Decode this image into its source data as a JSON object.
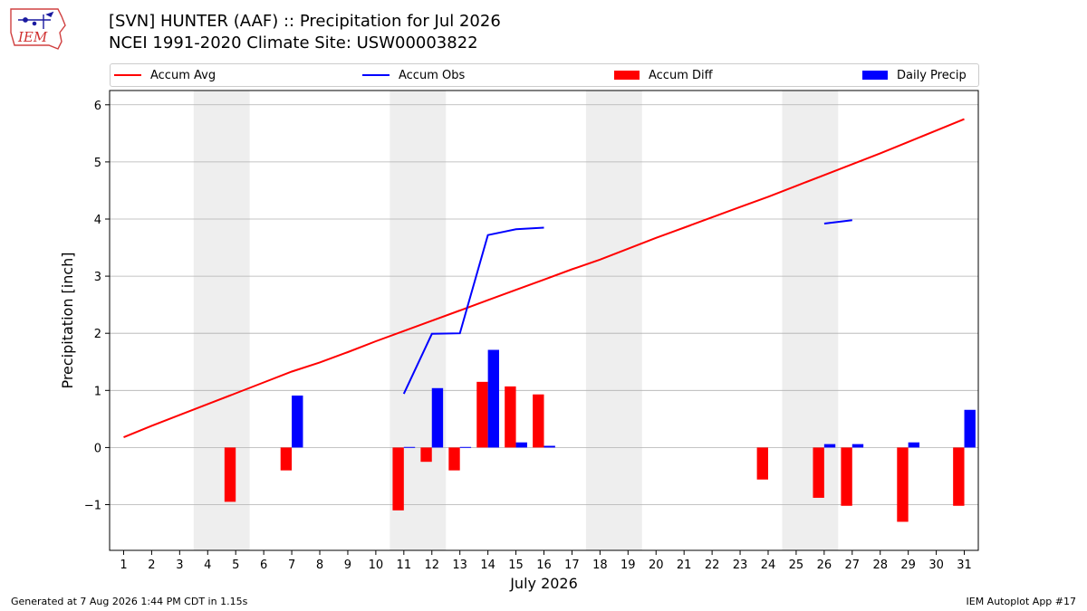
{
  "header": {
    "logo_text": "IEM",
    "title_line1": "[SVN] HUNTER (AAF) :: Precipitation for Jul 2026",
    "title_line2": "NCEI 1991-2020 Climate Site: USW00003822"
  },
  "legend": {
    "accum_avg": "Accum Avg",
    "accum_obs": "Accum Obs",
    "accum_diff": "Accum Diff",
    "daily_precip": "Daily Precip"
  },
  "colors": {
    "avg": "#ff0000",
    "obs": "#0000ff",
    "diff": "#ff0000",
    "daily": "#0000ff",
    "weekend": "#eeeeee",
    "grid": "#b0b0b0"
  },
  "footer": {
    "left": "Generated at 7 Aug 2026 1:44 PM CDT in 1.15s",
    "right": "IEM Autoplot App #17"
  },
  "chart_data": {
    "type": "bar",
    "xlabel": "July 2026",
    "ylabel": "Precipitation [inch]",
    "x": [
      1,
      2,
      3,
      4,
      5,
      6,
      7,
      8,
      9,
      10,
      11,
      12,
      13,
      14,
      15,
      16,
      17,
      18,
      19,
      20,
      21,
      22,
      23,
      24,
      25,
      26,
      27,
      28,
      29,
      30,
      31
    ],
    "xlim": [
      0.5,
      31.5
    ],
    "ylim": [
      -1.8,
      6.25
    ],
    "yticks": [
      -1,
      0,
      1,
      2,
      3,
      4,
      5,
      6
    ],
    "ytick_labels": [
      "−1",
      "0",
      "1",
      "2",
      "3",
      "4",
      "5",
      "6"
    ],
    "grid": "horizontal",
    "shaded_weekends": [
      [
        4,
        5
      ],
      [
        11,
        12
      ],
      [
        18,
        19
      ],
      [
        25,
        26
      ]
    ],
    "series": [
      {
        "name": "Accum Avg",
        "kind": "line",
        "values": [
          0.18,
          0.38,
          0.57,
          0.76,
          0.95,
          1.14,
          1.33,
          1.49,
          1.67,
          1.86,
          2.04,
          2.22,
          2.4,
          2.58,
          2.76,
          2.94,
          3.12,
          3.29,
          3.48,
          3.67,
          3.85,
          4.03,
          4.21,
          4.39,
          4.58,
          4.77,
          4.96,
          5.15,
          5.35,
          5.55,
          5.75
        ]
      },
      {
        "name": "Accum Obs",
        "kind": "line",
        "values": [
          null,
          null,
          null,
          null,
          null,
          null,
          null,
          null,
          null,
          null,
          0.94,
          1.99,
          2.0,
          3.72,
          3.82,
          3.85,
          null,
          null,
          null,
          null,
          null,
          null,
          null,
          null,
          null,
          3.92,
          3.98,
          null,
          null,
          null,
          null
        ]
      },
      {
        "name": "Accum Diff",
        "kind": "bar",
        "values": [
          0,
          0,
          0,
          0,
          -0.95,
          0,
          -0.4,
          0,
          0,
          0,
          -1.1,
          -0.25,
          -0.4,
          1.15,
          1.07,
          0.93,
          0,
          0,
          0,
          0,
          0,
          0,
          0,
          -0.56,
          0,
          -0.88,
          -1.02,
          0,
          -1.3,
          0,
          -1.02
        ]
      },
      {
        "name": "Daily Precip",
        "kind": "bar",
        "values": [
          0,
          0,
          0,
          0,
          0,
          0,
          0.91,
          0,
          0,
          0,
          0.01,
          1.04,
          0.01,
          1.71,
          0.09,
          0.03,
          0,
          0,
          0,
          0,
          0,
          0,
          0,
          0,
          0,
          0.06,
          0.06,
          0,
          0.09,
          0,
          0.66
        ]
      }
    ]
  }
}
